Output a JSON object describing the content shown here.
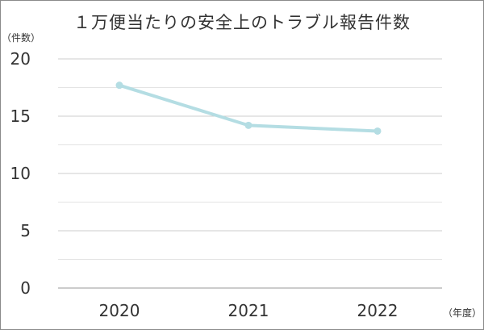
{
  "chart_data": {
    "type": "line",
    "title": "１万便当たりの安全上のトラブル報告件数",
    "ylabel": "（件数）",
    "xlabel": "（年度）",
    "categories": [
      "2020",
      "2021",
      "2022"
    ],
    "series": [
      {
        "values": [
          17.7,
          14.2,
          13.7
        ]
      }
    ],
    "ylim": [
      0,
      20
    ],
    "yticks": [
      0,
      5,
      10,
      15,
      20
    ],
    "minor_gridlines_per_major": 2,
    "grid": true,
    "colors": {
      "line": "#b4dde3",
      "grid": "#cccccc",
      "text": "#333333"
    }
  }
}
